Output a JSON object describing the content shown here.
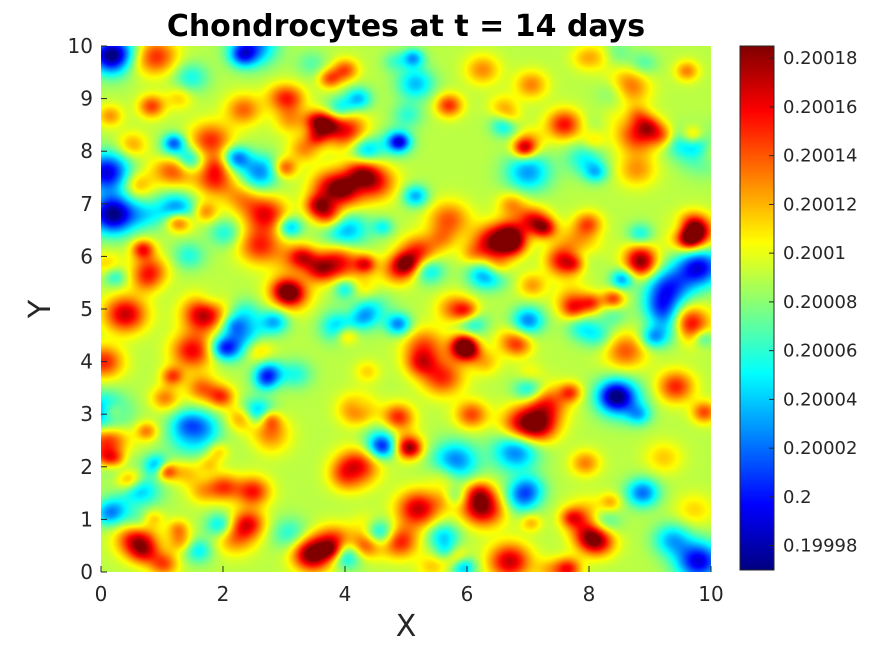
{
  "chart_data": {
    "type": "heatmap",
    "title": "Chondrocytes at t = 14 days",
    "xlabel": "X",
    "ylabel": "Y",
    "xlim": [
      0,
      10
    ],
    "ylim": [
      0,
      10
    ],
    "x_ticks": [
      0,
      2,
      4,
      6,
      8,
      10
    ],
    "y_ticks": [
      0,
      1,
      2,
      3,
      4,
      5,
      6,
      7,
      8,
      9,
      10
    ],
    "colormap": "jet",
    "color_range": [
      0.19997,
      0.200185
    ],
    "colorbar_ticks": [
      {
        "value": 0.19998,
        "label": "0.19998"
      },
      {
        "value": 0.2,
        "label": "0.2"
      },
      {
        "value": 0.20002,
        "label": "0.20002"
      },
      {
        "value": 0.20004,
        "label": "0.20004"
      },
      {
        "value": 0.20006,
        "label": "0.20006"
      },
      {
        "value": 0.20008,
        "label": "0.20008"
      },
      {
        "value": 0.2001,
        "label": "0.2001"
      },
      {
        "value": 0.20012,
        "label": "0.20012"
      },
      {
        "value": 0.20014,
        "label": "0.20014"
      },
      {
        "value": 0.20016,
        "label": "0.20016"
      },
      {
        "value": 0.20018,
        "label": "0.20018"
      }
    ],
    "background_value": 0.20009,
    "hotspots": [
      {
        "x": 0.4,
        "y": 4.9,
        "v": 0.20017
      },
      {
        "x": 1.2,
        "y": 7.7,
        "v": 0.20016
      },
      {
        "x": 1.7,
        "y": 4.9,
        "v": 0.20018
      },
      {
        "x": 1.5,
        "y": 4.2,
        "v": 0.20016
      },
      {
        "x": 2.7,
        "y": 6.8,
        "v": 0.20016
      },
      {
        "x": 2.6,
        "y": 6.2,
        "v": 0.20015
      },
      {
        "x": 3.8,
        "y": 7.3,
        "v": 0.20017
      },
      {
        "x": 4.0,
        "y": 8.4,
        "v": 0.20016
      },
      {
        "x": 4.5,
        "y": 7.4,
        "v": 0.20015
      },
      {
        "x": 6.45,
        "y": 6.25,
        "v": 0.20018
      },
      {
        "x": 5.7,
        "y": 6.7,
        "v": 0.20014
      },
      {
        "x": 9.6,
        "y": 4.7,
        "v": 0.20018
      },
      {
        "x": 9.7,
        "y": 6.4,
        "v": 0.20016
      },
      {
        "x": 8.6,
        "y": 9.2,
        "v": 0.20016
      },
      {
        "x": 8.8,
        "y": 8.3,
        "v": 0.20015
      },
      {
        "x": 0.1,
        "y": 2.5,
        "v": 0.20016
      },
      {
        "x": 3.5,
        "y": 0.35,
        "v": 0.20016
      },
      {
        "x": 5.2,
        "y": 1.2,
        "v": 0.20017
      },
      {
        "x": 6.3,
        "y": 1.2,
        "v": 0.20016
      },
      {
        "x": 6.7,
        "y": 0.2,
        "v": 0.20017
      },
      {
        "x": 6.9,
        "y": 2.8,
        "v": 0.20016
      },
      {
        "x": 7.3,
        "y": 3.2,
        "v": 0.20015
      },
      {
        "x": 4.2,
        "y": 2.0,
        "v": 0.20016
      },
      {
        "x": 2.7,
        "y": 2.6,
        "v": 0.20015
      },
      {
        "x": 3.1,
        "y": 5.3,
        "v": 0.20015
      },
      {
        "x": 5.3,
        "y": 4.3,
        "v": 0.20014
      },
      {
        "x": 3.9,
        "y": 5.9,
        "v": 0.20016
      },
      {
        "x": 0.9,
        "y": 9.8,
        "v": 0.20015
      },
      {
        "x": 1.8,
        "y": 8.2,
        "v": 0.20015
      },
      {
        "x": 8.0,
        "y": 1.0,
        "v": 0.20015
      },
      {
        "x": 7.8,
        "y": 6.2,
        "v": 0.20014
      },
      {
        "x": 8.6,
        "y": 4.2,
        "v": 0.20014
      },
      {
        "x": 5.6,
        "y": 3.7,
        "v": 0.20015
      },
      {
        "x": 0.6,
        "y": 0.6,
        "v": 0.20014
      },
      {
        "x": 2.2,
        "y": 0.7,
        "v": 0.20014
      }
    ],
    "coldspots": [
      {
        "x": 0.1,
        "y": 7.6,
        "v": 0.19999
      },
      {
        "x": 0.2,
        "y": 6.8,
        "v": 0.19997
      },
      {
        "x": 0.25,
        "y": 9.8,
        "v": 0.2
      },
      {
        "x": 9.8,
        "y": 5.8,
        "v": 0.19999
      },
      {
        "x": 9.9,
        "y": 8.0,
        "v": 0.20002
      },
      {
        "x": 9.3,
        "y": 5.4,
        "v": 0.20001
      },
      {
        "x": 5.8,
        "y": 2.1,
        "v": 0.20002
      },
      {
        "x": 6.8,
        "y": 2.3,
        "v": 0.20002
      },
      {
        "x": 9.8,
        "y": 0.2,
        "v": 0.19999
      },
      {
        "x": 0.05,
        "y": 3.0,
        "v": 0.20001
      },
      {
        "x": 2.3,
        "y": 4.5,
        "v": 0.20003
      },
      {
        "x": 1.5,
        "y": 2.6,
        "v": 0.20002
      },
      {
        "x": 4.3,
        "y": 5.1,
        "v": 0.20003
      },
      {
        "x": 2.5,
        "y": 10.0,
        "v": 0.20002
      },
      {
        "x": 4.0,
        "y": 6.5,
        "v": 0.20003
      },
      {
        "x": 7.0,
        "y": 7.6,
        "v": 0.20003
      },
      {
        "x": 8.5,
        "y": 3.3,
        "v": 0.20002
      }
    ]
  }
}
